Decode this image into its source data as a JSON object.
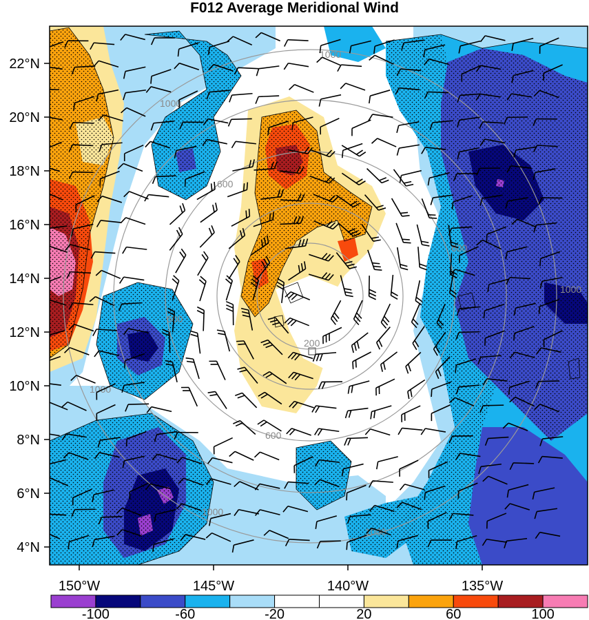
{
  "title": "F012 Average Meridional Wind",
  "map": {
    "lat_labels": [
      "22°N",
      "20°N",
      "18°N",
      "16°N",
      "14°N",
      "12°N",
      "10°N",
      "8°N",
      "6°N",
      "4°N"
    ],
    "lon_labels": [
      "150°W",
      "145°W",
      "140°W",
      "135°W"
    ],
    "range_ring_labels": [
      "200",
      "600",
      "1000",
      "1000",
      "600",
      "1000",
      "600",
      "1000",
      "600",
      "1000",
      "1000"
    ],
    "storm_center": {
      "lat": 13.6,
      "lon": -140.8
    }
  },
  "colorbar": {
    "labels": [
      "-100",
      "-60",
      "-20",
      "20",
      "60",
      "100"
    ],
    "colors": [
      "#9a3fd0",
      "#06077a",
      "#3b4bc8",
      "#1ab2ee",
      "#a9ddf8",
      "#ffffff",
      "#ffffff",
      "#fbe69a",
      "#fba30d",
      "#f84a0c",
      "#a81d20",
      "#f77cb3"
    ]
  },
  "legend_colors": {
    "ring": "#9a9a9a",
    "barb": "#000000",
    "contour": "#000000"
  }
}
